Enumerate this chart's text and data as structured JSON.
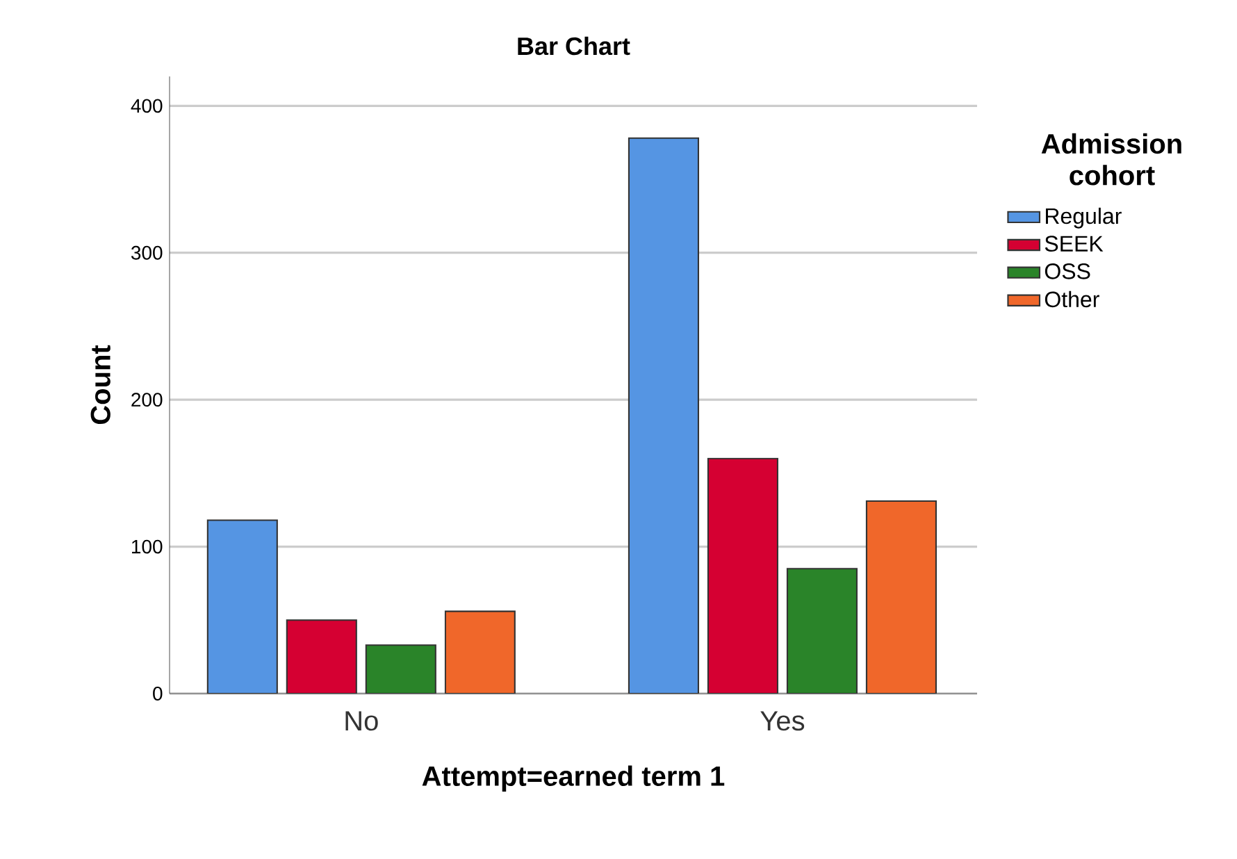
{
  "chart_data": {
    "type": "bar",
    "title": "Bar Chart",
    "xlabel": "Attempt=earned term 1",
    "ylabel": "Count",
    "legend_title": "Admission cohort",
    "categories": [
      "No",
      "Yes"
    ],
    "series": [
      {
        "name": "Regular",
        "color": "#5595e3",
        "values": [
          118,
          378
        ]
      },
      {
        "name": "SEEK",
        "color": "#d50032",
        "values": [
          50,
          160
        ]
      },
      {
        "name": "OSS",
        "color": "#2a8429",
        "values": [
          33,
          85
        ]
      },
      {
        "name": "Other",
        "color": "#f0672a",
        "values": [
          56,
          131
        ]
      }
    ],
    "ylim": [
      0,
      420
    ],
    "yticks": [
      0,
      100,
      200,
      300,
      400
    ],
    "grid": "y",
    "legend": "right"
  }
}
